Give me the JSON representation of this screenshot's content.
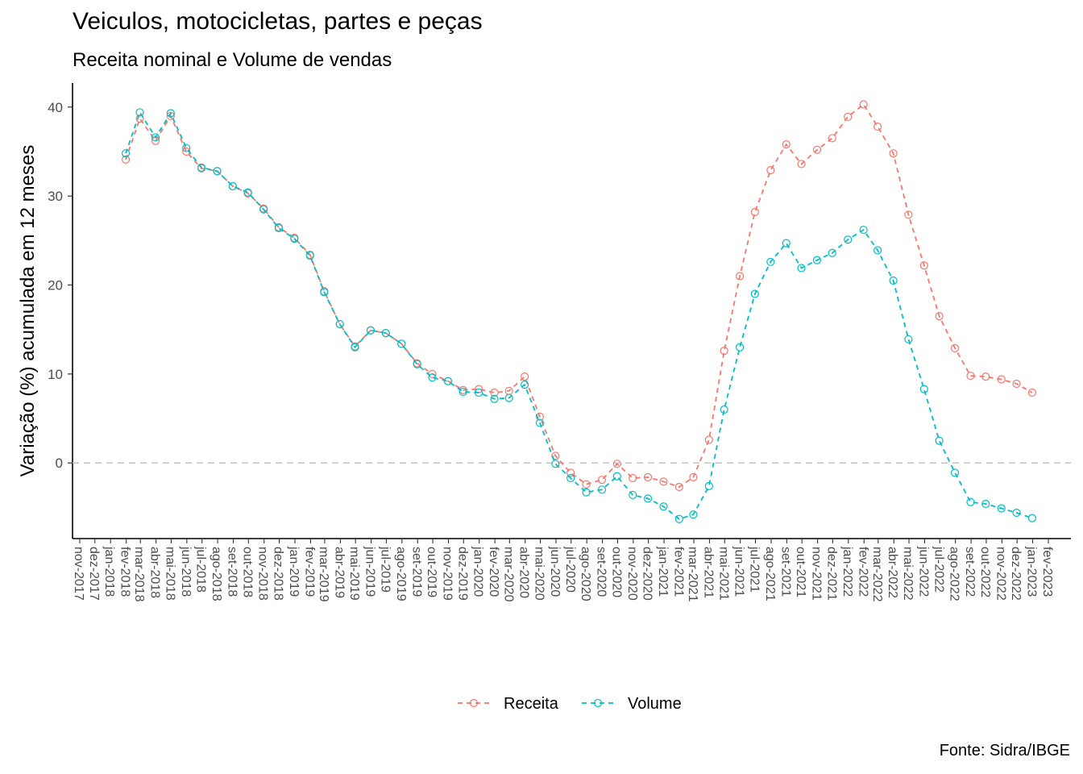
{
  "title": "Veiculos, motocicletas, partes e peças",
  "subtitle": "Receita nominal e Volume de vendas",
  "caption": "Fonte: Sidra/IBGE",
  "chart_data": {
    "type": "line",
    "ylabel": "Variação (%) acumulada em 12 meses",
    "xlabel": "",
    "ylim": [
      -8.5,
      42.7
    ],
    "yticks": [
      0,
      10,
      20,
      30,
      40
    ],
    "reference_line": {
      "y": 0,
      "style": "dashed",
      "color": "#bebebe"
    },
    "grid": false,
    "legend_position": "bottom",
    "x_ticks": [
      "nov-2017",
      "dez-2017",
      "jan-2018",
      "fev-2018",
      "mar-2018",
      "abr-2018",
      "mai-2018",
      "jun-2018",
      "jul-2018",
      "ago-2018",
      "set-2018",
      "out-2018",
      "nov-2018",
      "dez-2018",
      "jan-2019",
      "fev-2019",
      "mar-2019",
      "abr-2019",
      "mai-2019",
      "jun-2019",
      "jul-2019",
      "ago-2019",
      "set-2019",
      "out-2019",
      "nov-2019",
      "dez-2019",
      "jan-2020",
      "fev-2020",
      "mar-2020",
      "abr-2020",
      "mai-2020",
      "jun-2020",
      "jul-2020",
      "ago-2020",
      "set-2020",
      "out-2020",
      "nov-2020",
      "dez-2020",
      "jan-2021",
      "fev-2021",
      "mar-2021",
      "abr-2021",
      "mai-2021",
      "jun-2021",
      "jul-2021",
      "ago-2021",
      "set-2021",
      "out-2021",
      "nov-2021",
      "dez-2021",
      "jan-2022",
      "fev-2022",
      "mar-2022",
      "abr-2022",
      "mai-2022",
      "jun-2022",
      "jul-2022",
      "ago-2022",
      "set-2022",
      "out-2022",
      "nov-2022",
      "dez-2022",
      "jan-2023",
      "fev-2023"
    ],
    "x": [
      "2018-01-31",
      "2018-02-28",
      "2018-03-31",
      "2018-04-30",
      "2018-05-31",
      "2018-06-30",
      "2018-07-31",
      "2018-08-31",
      "2018-09-30",
      "2018-10-31",
      "2018-11-30",
      "2018-12-31",
      "2019-01-31",
      "2019-02-28",
      "2019-03-31",
      "2019-04-30",
      "2019-05-31",
      "2019-06-30",
      "2019-07-31",
      "2019-08-31",
      "2019-09-30",
      "2019-10-31",
      "2019-11-30",
      "2019-12-31",
      "2020-01-31",
      "2020-02-29",
      "2020-03-31",
      "2020-04-30",
      "2020-05-31",
      "2020-06-30",
      "2020-07-31",
      "2020-08-31",
      "2020-09-30",
      "2020-10-31",
      "2020-11-30",
      "2020-12-31",
      "2021-01-31",
      "2021-02-28",
      "2021-03-31",
      "2021-04-30",
      "2021-05-31",
      "2021-06-30",
      "2021-07-31",
      "2021-08-31",
      "2021-09-30",
      "2021-10-31",
      "2021-11-30",
      "2021-12-31",
      "2022-01-31",
      "2022-02-28",
      "2022-03-31",
      "2022-04-30",
      "2022-05-31",
      "2022-06-30",
      "2022-07-31",
      "2022-08-31",
      "2022-09-30",
      "2022-10-31",
      "2022-11-30",
      "2022-12-31"
    ],
    "series": [
      {
        "name": "Receita",
        "color": "#F8766D",
        "values": [
          34.1,
          38.7,
          36.2,
          39.0,
          35.0,
          33.1,
          32.8,
          31.1,
          30.3,
          28.6,
          26.5,
          25.3,
          23.4,
          19.3,
          15.6,
          13.1,
          14.9,
          14.6,
          13.4,
          11.2,
          10.0,
          9.2,
          8.2,
          8.3,
          7.9,
          8.1,
          9.7,
          5.2,
          0.8,
          -1.1,
          -2.4,
          -1.9,
          -0.1,
          -1.7,
          -1.6,
          -2.1,
          -2.7,
          -1.6,
          2.6,
          12.6,
          21.0,
          28.2,
          32.9,
          35.8,
          33.6,
          35.2,
          36.5,
          38.9,
          40.3,
          37.8,
          34.8,
          27.9,
          22.2,
          16.5,
          12.9,
          9.8,
          9.7,
          9.4,
          8.9,
          7.9
        ]
      },
      {
        "name": "Volume",
        "color": "#00BFC4",
        "values": [
          34.8,
          39.4,
          36.6,
          39.3,
          35.4,
          33.2,
          32.8,
          31.1,
          30.4,
          28.5,
          26.4,
          25.2,
          23.3,
          19.2,
          15.6,
          13.0,
          14.9,
          14.6,
          13.4,
          11.1,
          9.6,
          9.2,
          8.0,
          7.9,
          7.2,
          7.3,
          8.8,
          4.5,
          -0.1,
          -1.7,
          -3.3,
          -3.0,
          -1.5,
          -3.6,
          -4.0,
          -4.9,
          -6.3,
          -5.8,
          -2.6,
          6.0,
          13.0,
          19.0,
          22.6,
          24.7,
          21.9,
          22.8,
          23.6,
          25.1,
          26.2,
          23.9,
          20.5,
          13.9,
          8.3,
          2.5,
          -1.1,
          -4.4,
          -4.6,
          -5.1,
          -5.6,
          -6.2
        ]
      }
    ]
  }
}
